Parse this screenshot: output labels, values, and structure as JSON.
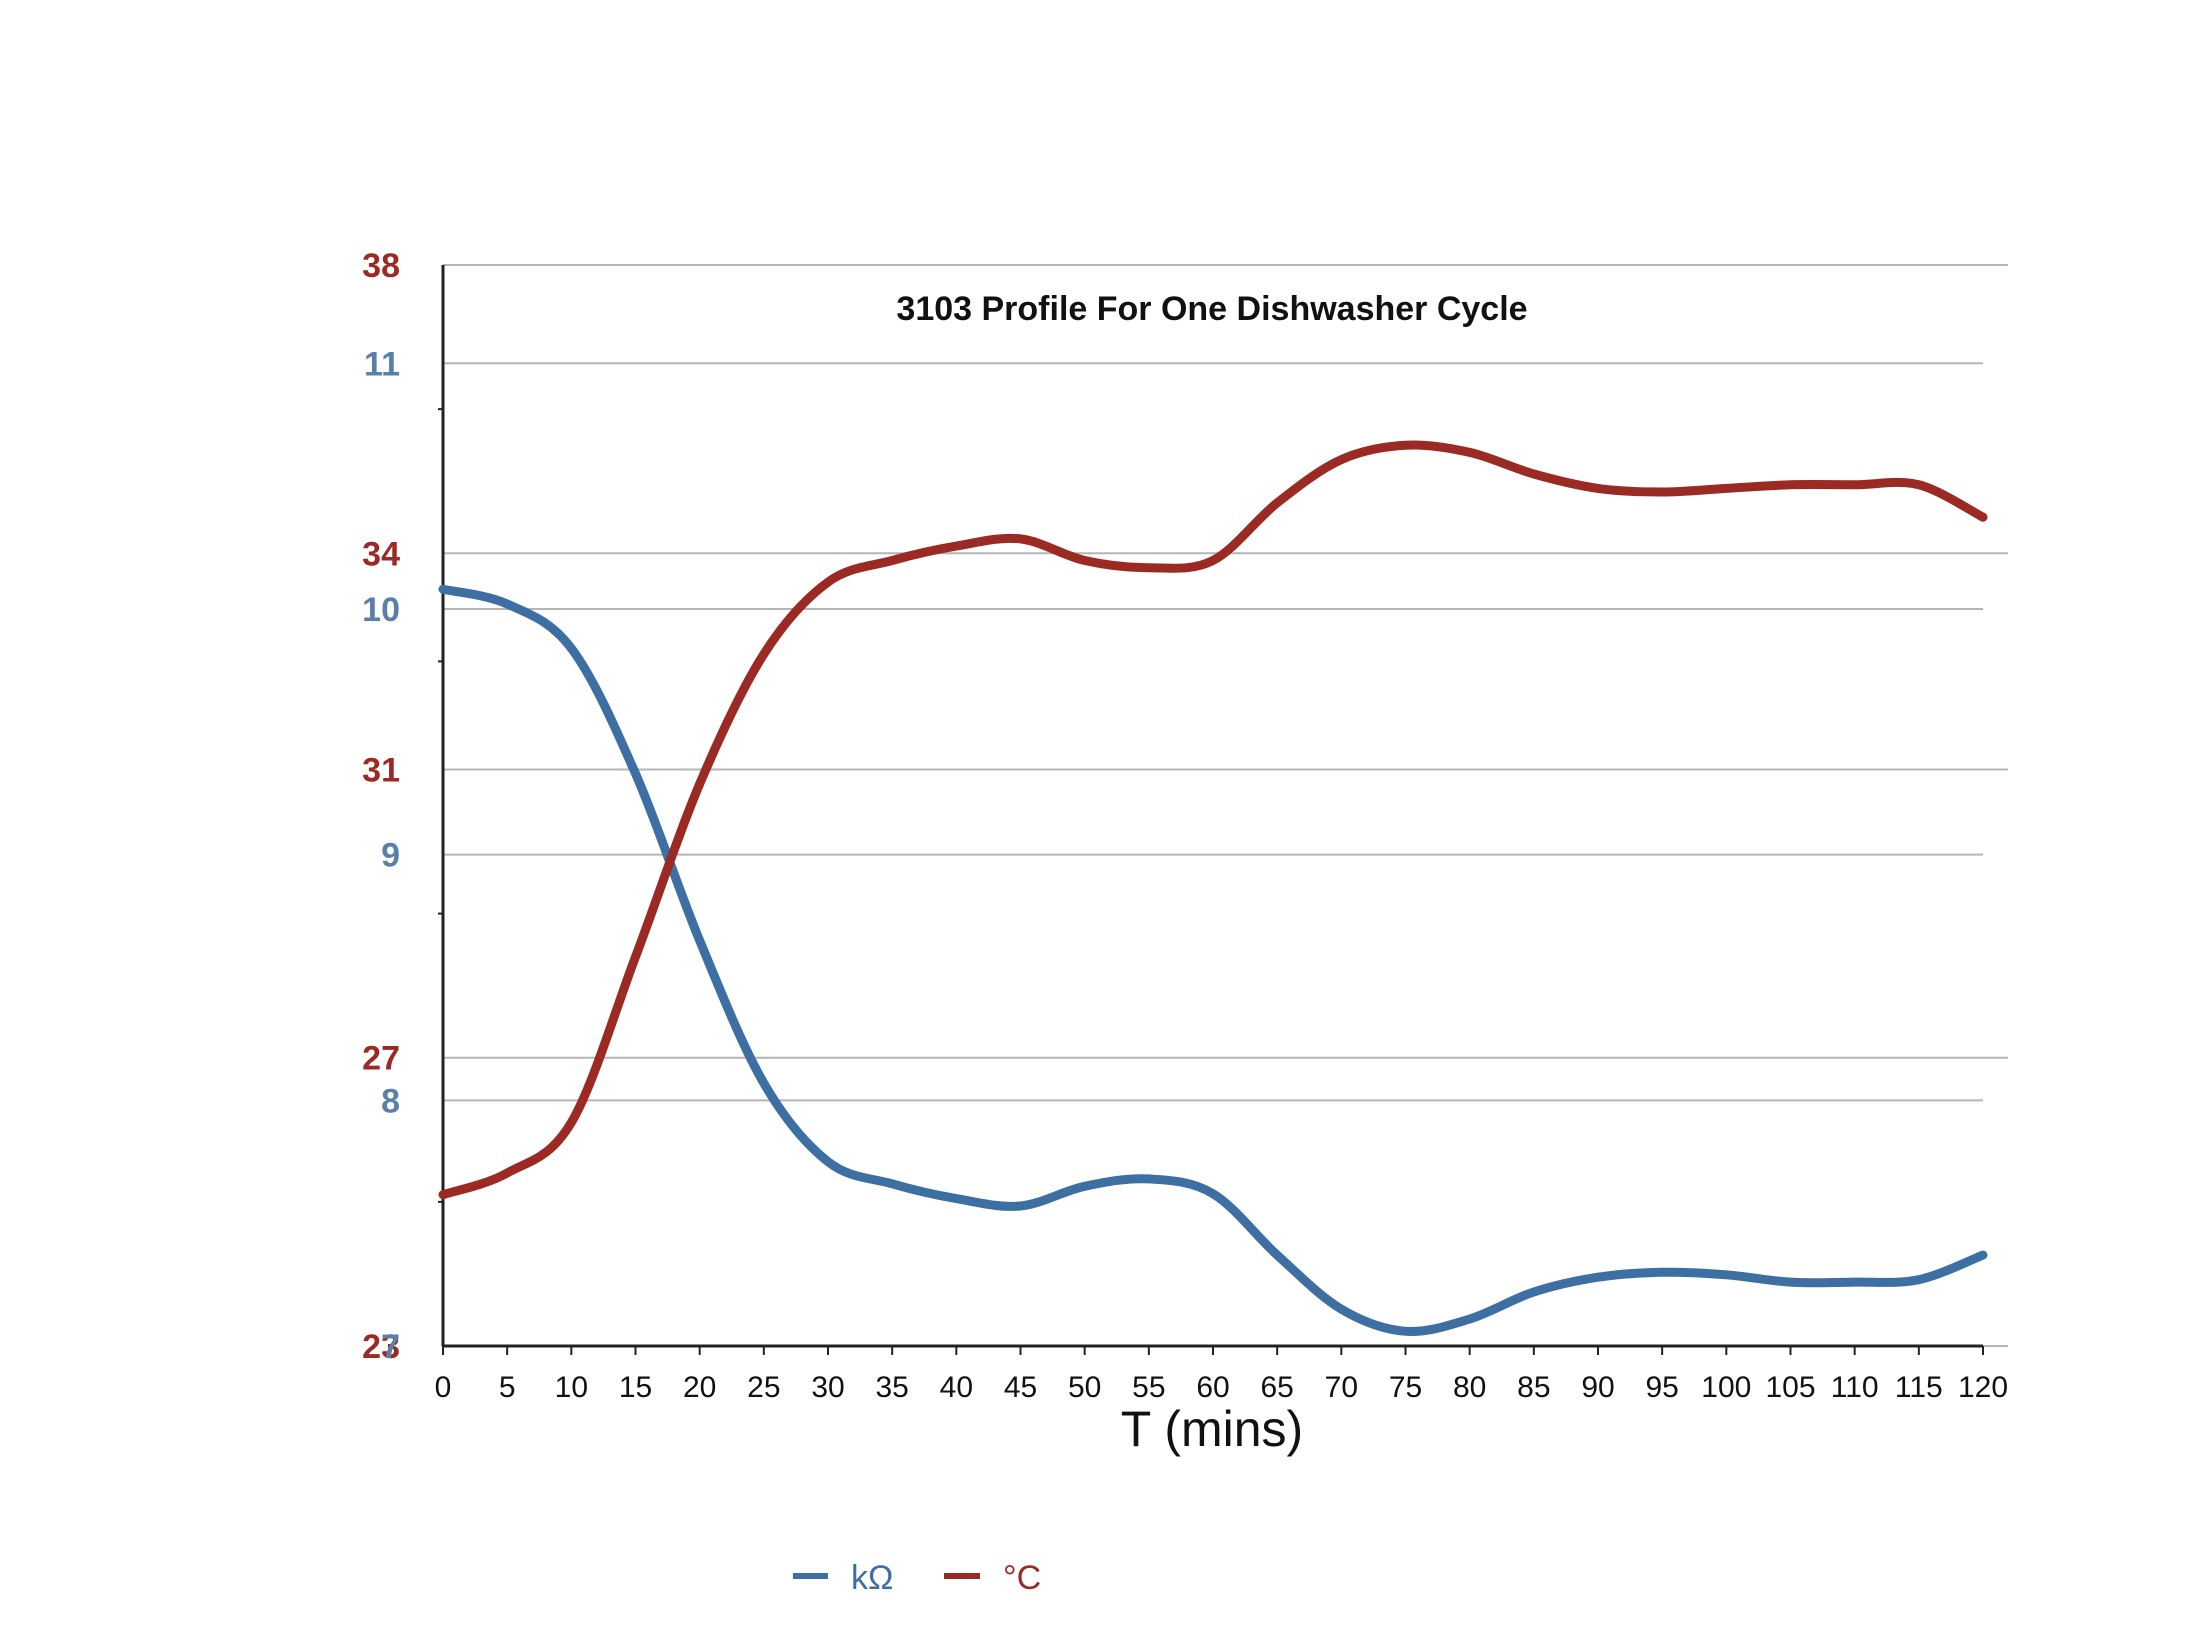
{
  "chart_data": {
    "type": "line",
    "title": "3103 Profile For One Dishwasher Cycle",
    "xlabel": "T (mins)",
    "xlim": [
      0,
      120
    ],
    "x_ticks": [
      "0",
      "5",
      "10",
      "15",
      "20",
      "25",
      "30",
      "35",
      "40",
      "45",
      "50",
      "55",
      "60",
      "65",
      "70",
      "75",
      "80",
      "85",
      "90",
      "95",
      "100",
      "105",
      "110",
      "115",
      "120"
    ],
    "grid": true,
    "legend_position": "bottom-center",
    "left_axis_primary": {
      "series": "°C",
      "ylim": [
        23,
        38
      ],
      "ticks": [
        23,
        27,
        31,
        34,
        38
      ],
      "color": "#9b2a24"
    },
    "left_axis_secondary": {
      "series": "kΩ",
      "ylim": [
        7,
        11.4
      ],
      "ticks": [
        7,
        8,
        9,
        10,
        11
      ],
      "color": "#5a7fa8"
    },
    "series": [
      {
        "name": "kΩ",
        "color": "#3d6fa3",
        "axis": "secondary",
        "x": [
          0,
          5,
          10,
          15,
          20,
          25,
          30,
          35,
          40,
          45,
          50,
          55,
          60,
          65,
          70,
          75,
          80,
          85,
          90,
          95,
          100,
          105,
          110,
          115,
          120
        ],
        "y": [
          10.08,
          10.02,
          9.84,
          9.33,
          8.65,
          8.07,
          7.75,
          7.66,
          7.6,
          7.57,
          7.65,
          7.68,
          7.62,
          7.37,
          7.15,
          7.06,
          7.11,
          7.22,
          7.28,
          7.3,
          7.29,
          7.26,
          7.26,
          7.27,
          7.37
        ]
      },
      {
        "name": "°C",
        "color": "#9b2a24",
        "axis": "primary",
        "x": [
          0,
          5,
          10,
          15,
          20,
          25,
          30,
          35,
          40,
          45,
          50,
          55,
          60,
          65,
          70,
          75,
          80,
          85,
          90,
          95,
          100,
          105,
          110,
          115,
          120
        ],
        "y": [
          25.1,
          25.4,
          26.1,
          28.4,
          30.8,
          32.6,
          33.6,
          33.9,
          34.1,
          34.2,
          33.9,
          33.8,
          33.9,
          34.7,
          35.3,
          35.5,
          35.4,
          35.1,
          34.9,
          34.85,
          34.9,
          34.95,
          34.95,
          34.95,
          34.5
        ]
      }
    ]
  }
}
